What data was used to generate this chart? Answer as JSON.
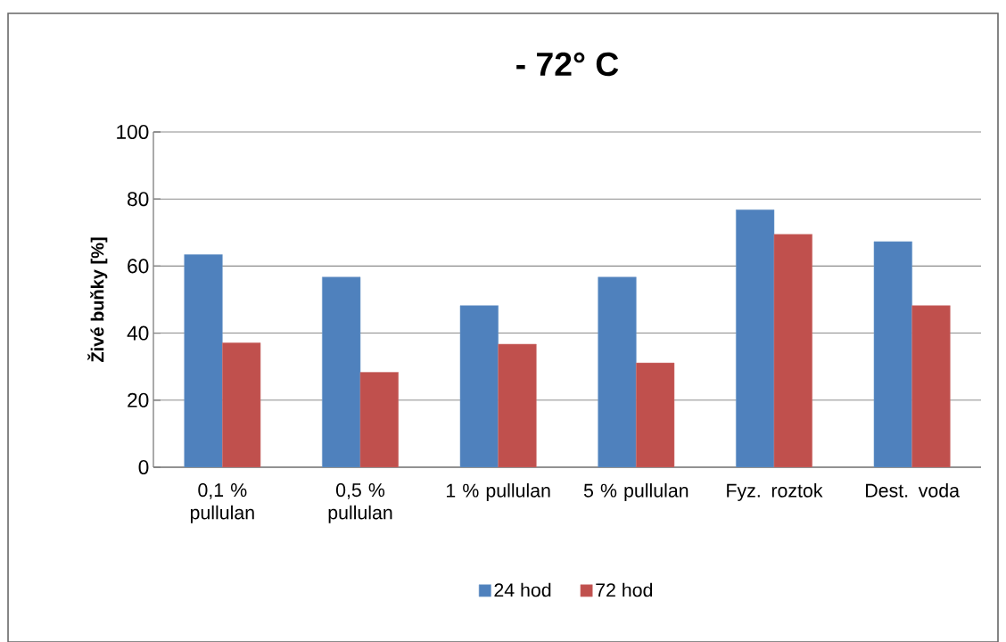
{
  "chart_data": {
    "type": "bar",
    "title": "- 72° C",
    "ylabel": "Živé buňky [%]",
    "categories": [
      "0,1 % pullulan",
      "0,5 % pullulan",
      "1 % pullulan",
      "5 % pullulan",
      "Fyz. roztok",
      "Dest. voda"
    ],
    "series": [
      {
        "name": "24 hod",
        "color": "#4f81bd",
        "values": [
          63.4,
          56.7,
          48.2,
          56.7,
          76.8,
          67.3
        ]
      },
      {
        "name": "72 hod",
        "color": "#c0504d",
        "values": [
          37.1,
          28.3,
          36.7,
          31.1,
          69.5,
          48.2
        ]
      }
    ],
    "ylim": [
      0,
      100
    ],
    "yticks": [
      0,
      20,
      40,
      60,
      80,
      100
    ],
    "grid": "y",
    "legend": "bottom"
  }
}
